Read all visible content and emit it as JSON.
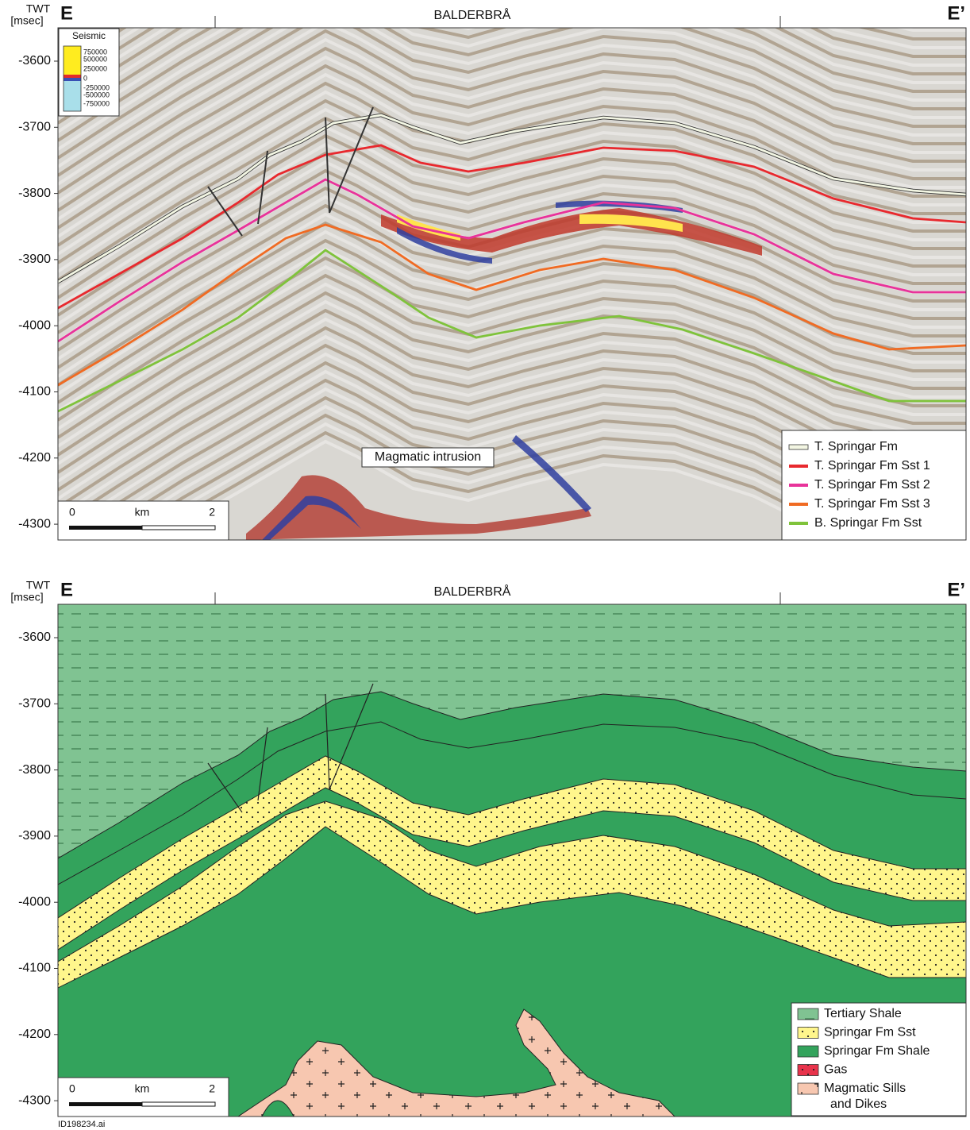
{
  "panels": [
    {
      "axis_title": "TWT",
      "axis_unit": "[msec]",
      "left_label": "E",
      "right_label": "E’",
      "location": "BALDERBRÅ",
      "y_tick_labels": [
        "-3600",
        "-3700",
        "-3800",
        "-3900",
        "-4000",
        "-4100",
        "-4200",
        "-4300"
      ],
      "colorbar": {
        "title": "Seismic",
        "labels": [
          "750000",
          "500000",
          "250000",
          "0",
          "-250000",
          "-500000",
          "-750000"
        ]
      },
      "annotation": "Magmatic intrusion",
      "scale_bar": [
        "0",
        "km",
        "2"
      ],
      "legend": [
        "T. Springar Fm",
        "T. Springar Fm Sst 1",
        "T. Springar Fm Sst 2",
        "T. Springar Fm Sst 3",
        "B. Springar Fm Sst"
      ]
    },
    {
      "axis_title": "TWT",
      "axis_unit": "[msec]",
      "left_label": "E",
      "right_label": "E’",
      "location": "BALDERBRÅ",
      "y_tick_labels": [
        "-3600",
        "-3700",
        "-3800",
        "-3900",
        "-4000",
        "-4100",
        "-4200",
        "-4300"
      ],
      "scale_bar": [
        "0",
        "km",
        "2"
      ],
      "legend": [
        "Tertiary Shale",
        "Springar Fm Sst",
        "Springar Fm Shale",
        "Gas",
        [
          "Magmatic Sills",
          "and Dikes"
        ]
      ]
    }
  ],
  "file_id": "ID198234.ai"
}
